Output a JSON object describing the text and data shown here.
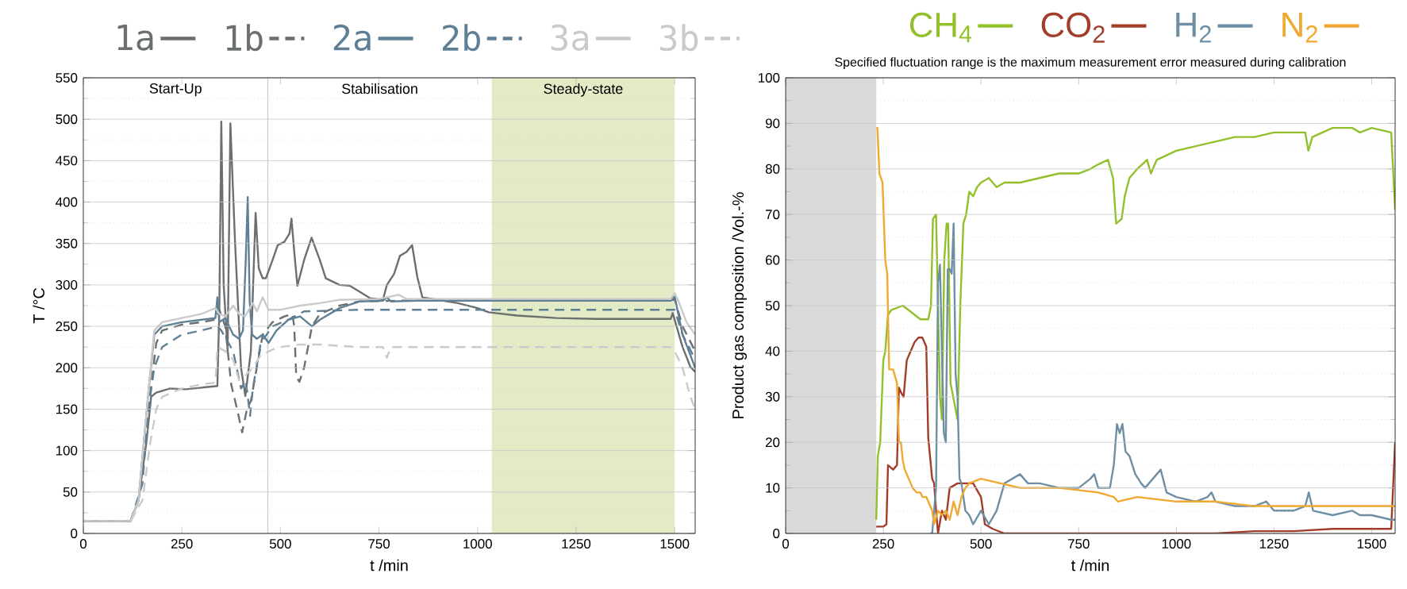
{
  "chart_data": [
    {
      "type": "line",
      "xlabel": "t /min",
      "ylabel": "T /°C",
      "xlim": [
        0,
        1552
      ],
      "ylim": [
        0,
        550
      ],
      "xticks": [
        0,
        250,
        500,
        750,
        1000,
        1250,
        1500
      ],
      "yticks": [
        0,
        50,
        100,
        150,
        200,
        250,
        300,
        350,
        400,
        450,
        500,
        550
      ],
      "grid": "y",
      "legend": "top",
      "annotations": [
        "Start-Up",
        "Stabilisation"
      ],
      "ref_lines": [
        {
          "axis": "x",
          "value": 468,
          "color": "#c8c8c8"
        }
      ],
      "bands": [
        {
          "axis": "x",
          "from": 1036,
          "to": 1500,
          "label": "Steady-state",
          "color": "#e2ebc6"
        }
      ],
      "series": [
        {
          "name": "1a",
          "color": "#6b6f6f",
          "line_style": "solid",
          "x": [
            0,
            120,
            140,
            160,
            172,
            185,
            220,
            260,
            300,
            340,
            345,
            350,
            356,
            366,
            373,
            385,
            400,
            411,
            425,
            437,
            445,
            455,
            463,
            480,
            493,
            510,
            523,
            528,
            535,
            543,
            560,
            579,
            600,
            615,
            650,
            676,
            700,
            727,
            760,
            770,
            788,
            803,
            820,
            834,
            847,
            860,
            900,
            950,
            1000,
            1028,
            1100,
            1200,
            1300,
            1490,
            1495,
            1520,
            1540,
            1552
          ],
          "values": [
            15,
            15,
            40,
            110,
            165,
            170,
            175,
            174,
            176,
            178,
            270,
            497,
            300,
            220,
            495,
            350,
            200,
            166,
            220,
            387,
            320,
            308,
            308,
            330,
            348,
            352,
            362,
            380,
            340,
            299,
            330,
            357,
            330,
            308,
            300,
            299,
            292,
            284,
            282,
            300,
            313,
            335,
            340,
            348,
            310,
            285,
            282,
            278,
            272,
            267,
            263,
            260,
            259,
            259,
            266,
            225,
            201,
            195
          ]
        },
        {
          "name": "1b",
          "color": "#6b6f6f",
          "line_style": "dashed",
          "x": [
            0,
            120,
            140,
            165,
            185,
            200,
            250,
            300,
            335,
            345,
            360,
            375,
            390,
            403,
            415,
            425,
            440,
            455,
            480,
            510,
            530,
            535,
            540,
            548,
            560,
            580,
            600,
            650,
            700,
            800,
            1000,
            1490,
            1500,
            1520,
            1552
          ],
          "values": [
            15,
            15,
            40,
            150,
            230,
            245,
            252,
            255,
            258,
            270,
            250,
            180,
            150,
            122,
            150,
            160,
            200,
            240,
            255,
            262,
            265,
            250,
            190,
            183,
            200,
            250,
            265,
            275,
            280,
            281,
            281,
            281,
            283,
            250,
            220
          ]
        },
        {
          "name": "2a",
          "color": "#5f7f95",
          "line_style": "solid",
          "x": [
            0,
            120,
            140,
            165,
            180,
            200,
            250,
            300,
            335,
            340,
            345,
            360,
            380,
            395,
            405,
            412,
            417,
            422,
            428,
            440,
            455,
            470,
            490,
            520,
            550,
            580,
            600,
            650,
            700,
            760,
            770,
            780,
            850,
            1490,
            1500,
            1520,
            1552
          ],
          "values": [
            15,
            15,
            40,
            170,
            240,
            250,
            255,
            258,
            260,
            285,
            255,
            260,
            240,
            235,
            245,
            330,
            406,
            280,
            240,
            235,
            240,
            230,
            245,
            258,
            262,
            250,
            258,
            272,
            280,
            281,
            285,
            280,
            281,
            281,
            286,
            240,
            200
          ]
        },
        {
          "name": "2b",
          "color": "#5f7f95",
          "line_style": "dashed",
          "x": [
            0,
            120,
            150,
            165,
            180,
            200,
            250,
            300,
            340,
            350,
            380,
            400,
            412,
            423,
            430,
            450,
            480,
            520,
            560,
            700,
            900,
            1490,
            1500,
            1520,
            1552
          ],
          "values": [
            15,
            15,
            60,
            150,
            200,
            225,
            240,
            245,
            250,
            245,
            220,
            175,
            185,
            142,
            175,
            230,
            250,
            258,
            268,
            270,
            270,
            270,
            270,
            240,
            210
          ]
        },
        {
          "name": "3a",
          "color": "#cacaca",
          "line_style": "solid",
          "x": [
            0,
            120,
            140,
            165,
            180,
            200,
            250,
            300,
            335,
            345,
            360,
            380,
            395,
            410,
            420,
            430,
            440,
            455,
            470,
            500,
            550,
            600,
            650,
            750,
            800,
            820,
            1490,
            1500,
            1510,
            1530,
            1552
          ],
          "values": [
            15,
            15,
            40,
            170,
            245,
            255,
            260,
            265,
            272,
            265,
            262,
            275,
            265,
            262,
            270,
            278,
            268,
            285,
            270,
            270,
            275,
            278,
            282,
            283,
            288,
            283,
            283,
            290,
            280,
            255,
            240
          ]
        },
        {
          "name": "3b",
          "color": "#cacaca",
          "line_style": "dashed",
          "x": [
            0,
            120,
            150,
            170,
            185,
            200,
            250,
            300,
            335,
            340,
            360,
            380,
            395,
            410,
            430,
            450,
            480,
            500,
            550,
            600,
            700,
            760,
            770,
            780,
            900,
            1490,
            1500,
            1520,
            1540,
            1552
          ],
          "values": [
            15,
            15,
            40,
            110,
            150,
            165,
            175,
            180,
            182,
            225,
            220,
            210,
            185,
            190,
            200,
            215,
            222,
            225,
            228,
            228,
            225,
            225,
            212,
            225,
            225,
            225,
            220,
            200,
            165,
            150
          ]
        }
      ]
    },
    {
      "type": "line",
      "subtitle": "Specified fluctuation range is the maximum measurement error measured during calibration",
      "xlabel": "t /min",
      "ylabel": "Product gas composition /Vol.-%",
      "xlim": [
        0,
        1560
      ],
      "ylim": [
        0,
        100
      ],
      "xticks": [
        0,
        250,
        500,
        750,
        1000,
        1250,
        1500
      ],
      "yticks": [
        0,
        10,
        20,
        30,
        40,
        50,
        60,
        70,
        80,
        90,
        100
      ],
      "grid": "y",
      "legend": "top",
      "bands": [
        {
          "axis": "x",
          "from": 0,
          "to": 232,
          "color": "#d9d9d9"
        }
      ],
      "series": [
        {
          "name": "CH$_{4}$",
          "color": "#92c02b",
          "x": [
            232,
            236,
            242,
            250,
            255,
            262,
            270,
            300,
            330,
            345,
            365,
            372,
            377,
            385,
            395,
            400,
            406,
            412,
            416,
            422,
            440,
            447,
            455,
            462,
            470,
            480,
            490,
            500,
            520,
            540,
            560,
            600,
            650,
            700,
            750,
            780,
            800,
            825,
            838,
            846,
            860,
            868,
            880,
            900,
            925,
            935,
            950,
            1000,
            1050,
            1100,
            1150,
            1200,
            1250,
            1330,
            1338,
            1348,
            1400,
            1450,
            1470,
            1500,
            1550,
            1560
          ],
          "values": [
            3,
            17,
            20,
            38,
            40,
            48,
            49,
            50,
            48,
            47,
            47,
            50,
            69,
            70,
            30,
            25,
            60,
            68,
            68,
            33,
            25,
            50,
            68,
            70,
            75,
            74,
            76,
            77,
            78,
            76,
            77,
            77,
            78,
            79,
            79,
            80,
            81,
            82,
            78,
            68,
            69,
            74,
            78,
            80,
            82,
            79,
            82,
            84,
            85,
            86,
            87,
            87,
            88,
            88,
            84,
            87,
            89,
            89,
            88,
            89,
            88,
            71
          ]
        },
        {
          "name": "CO$_{2}$",
          "color": "#a33d2a",
          "x": [
            232,
            240,
            250,
            258,
            262,
            275,
            285,
            290,
            295,
            302,
            310,
            320,
            330,
            340,
            350,
            360,
            365,
            375,
            380,
            385,
            390,
            400,
            410,
            420,
            440,
            460,
            480,
            500,
            510,
            530,
            560,
            700,
            900,
            1100,
            1200,
            1300,
            1400,
            1500,
            1550,
            1560
          ],
          "values": [
            1.5,
            1.5,
            1.5,
            2,
            15,
            14,
            15,
            32,
            31,
            30,
            38,
            40,
            42,
            43,
            43,
            41,
            21,
            12,
            11,
            5,
            0,
            5,
            3,
            10,
            11,
            11,
            11,
            8,
            2,
            1,
            0,
            0,
            0,
            0,
            0.5,
            0.5,
            1,
            1,
            1,
            20
          ]
        },
        {
          "name": "H$_{2}$",
          "color": "#6e8fa3",
          "x": [
            370,
            375,
            385,
            390,
            395,
            400,
            405,
            410,
            415,
            420,
            425,
            430,
            435,
            440,
            445,
            450,
            460,
            470,
            480,
            500,
            520,
            540,
            560,
            580,
            600,
            620,
            650,
            700,
            750,
            780,
            790,
            800,
            830,
            840,
            848,
            855,
            862,
            870,
            880,
            895,
            910,
            920,
            950,
            960,
            975,
            1000,
            1050,
            1080,
            1090,
            1100,
            1150,
            1200,
            1230,
            1250,
            1300,
            1330,
            1339,
            1350,
            1400,
            1450,
            1470,
            1500,
            1550,
            1560
          ],
          "values": [
            0,
            0,
            10,
            55,
            59,
            40,
            22,
            20,
            58,
            58,
            57,
            68,
            35,
            30,
            12,
            11,
            5,
            4,
            2,
            5,
            2,
            5,
            11,
            12,
            13,
            11,
            11,
            10,
            10,
            12,
            13,
            10,
            10,
            15,
            24,
            22,
            24,
            18,
            17,
            13,
            11,
            10,
            13,
            14,
            9,
            8,
            7,
            8,
            9,
            7,
            6,
            6,
            7,
            5,
            5,
            6,
            9,
            5,
            4,
            5,
            4,
            4,
            3,
            3
          ]
        },
        {
          "name": "N$_{2}$",
          "color": "#f0a830",
          "x": [
            232,
            235,
            240,
            248,
            255,
            260,
            265,
            275,
            285,
            290,
            295,
            300,
            305,
            315,
            325,
            335,
            345,
            350,
            360,
            370,
            375,
            380,
            390,
            400,
            410,
            420,
            430,
            440,
            450,
            460,
            470,
            500,
            550,
            600,
            700,
            800,
            840,
            850,
            900,
            1000,
            1100,
            1200,
            1300,
            1400,
            1500,
            1560
          ],
          "values": [
            89,
            89,
            79,
            77,
            60,
            57,
            36,
            36,
            33,
            20,
            20,
            16,
            14,
            12,
            10,
            9,
            9,
            8,
            8,
            6,
            5,
            2,
            5,
            4,
            5,
            3,
            7,
            4,
            8,
            10,
            11,
            12,
            11,
            10,
            10,
            9,
            8,
            7,
            8,
            7,
            7,
            6,
            6,
            6,
            6,
            6
          ]
        }
      ]
    }
  ]
}
